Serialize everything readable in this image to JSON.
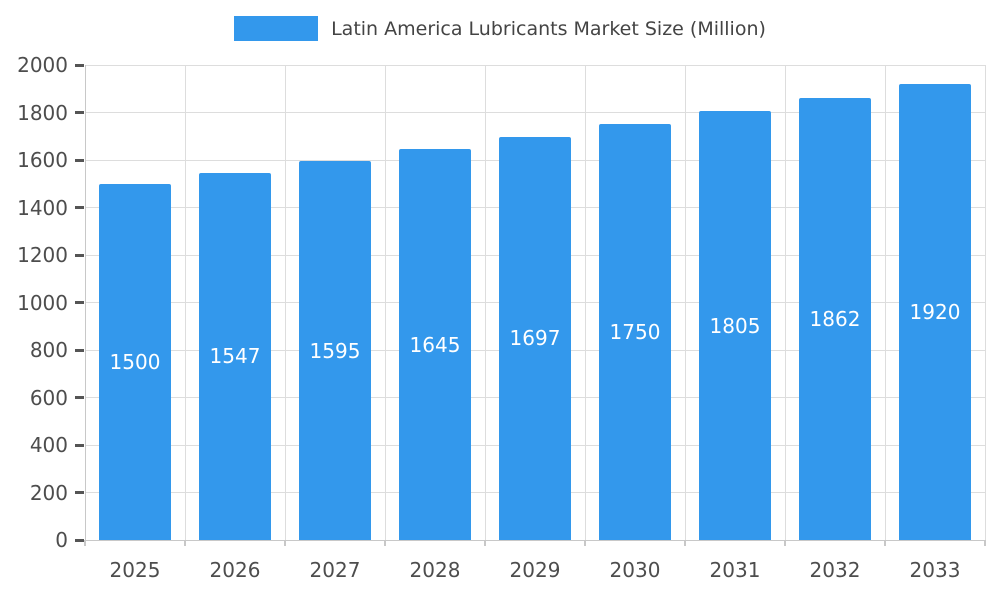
{
  "chart_data": {
    "type": "bar",
    "title": "Latin America Lubricants Market Size (Million)",
    "categories": [
      "2025",
      "2026",
      "2027",
      "2028",
      "2029",
      "2030",
      "2031",
      "2032",
      "2033"
    ],
    "values": [
      1500,
      1547,
      1595,
      1645,
      1697,
      1750,
      1805,
      1862,
      1920
    ],
    "xlabel": "",
    "ylabel": "",
    "ylim": [
      0,
      2000
    ],
    "ytick_step": 200,
    "yticks": [
      0,
      200,
      400,
      600,
      800,
      1000,
      1200,
      1400,
      1600,
      1800,
      2000
    ],
    "grid": true,
    "legend_position": "top",
    "bar_value_labels_inside": true,
    "colors": {
      "bar": "#3398ec",
      "bar_value_text": "#ffffff",
      "axis_text": "#4d4d4d",
      "legend_text": "#444444",
      "gridline": "#dddddd",
      "tick": "#555555",
      "background": "#ffffff"
    }
  }
}
